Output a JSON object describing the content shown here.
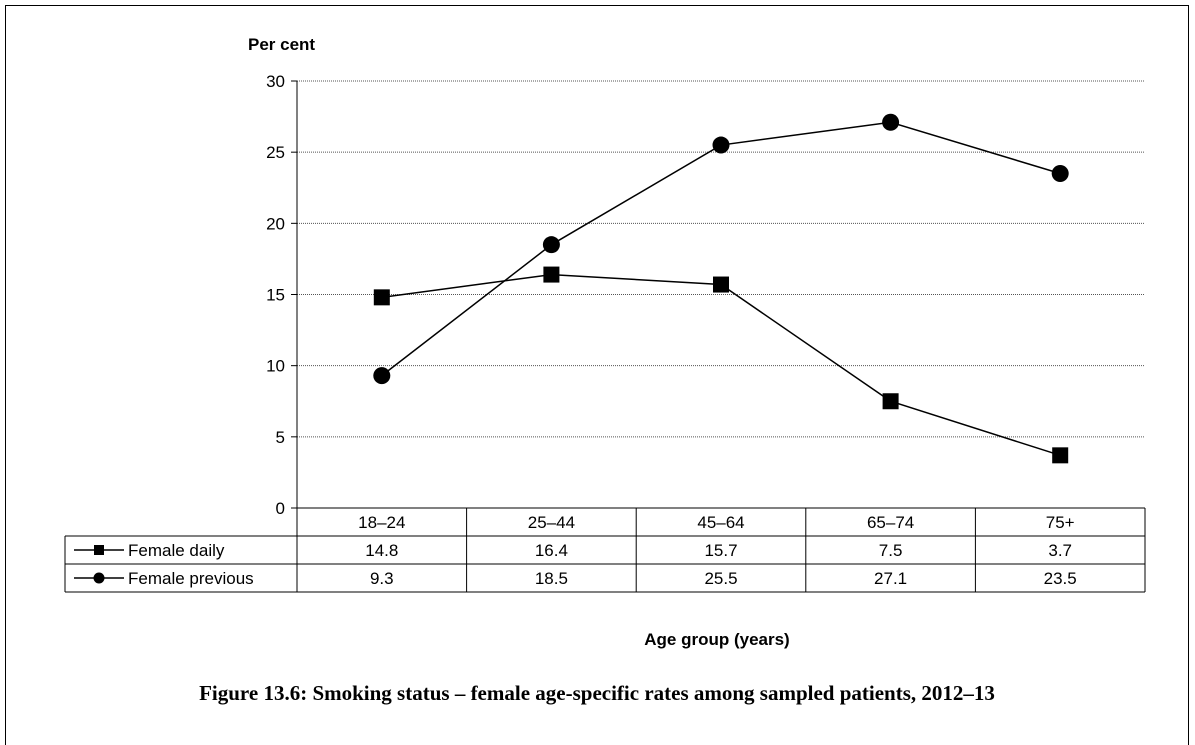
{
  "chart_data": {
    "type": "line",
    "title": "Figure 13.6: Smoking status – female age-specific rates among sampled patients, 2012–13",
    "ylabel": "Per cent",
    "xlabel": "Age group (years)",
    "ylim": [
      0,
      30
    ],
    "yticks": [
      "0",
      "5",
      "10",
      "15",
      "20",
      "25",
      "30"
    ],
    "categories": [
      "18–24",
      "25–44",
      "45–64",
      "65–74",
      "75+"
    ],
    "grid": true,
    "legend": "data-table",
    "series": [
      {
        "name": "Female daily",
        "marker": "square",
        "values": [
          14.8,
          16.4,
          15.7,
          7.5,
          3.7
        ],
        "labels": [
          "14.8",
          "16.4",
          "15.7",
          "7.5",
          "3.7"
        ]
      },
      {
        "name": "Female previous",
        "marker": "circle",
        "values": [
          9.3,
          18.5,
          25.5,
          27.1,
          23.5
        ],
        "labels": [
          "9.3",
          "18.5",
          "25.5",
          "27.1",
          "23.5"
        ]
      }
    ]
  }
}
